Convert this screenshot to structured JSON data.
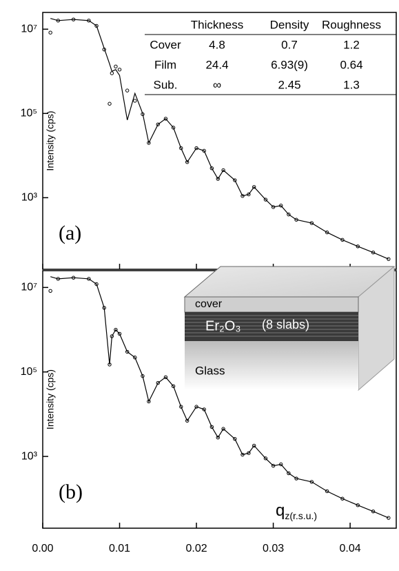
{
  "chart_data": [
    {
      "type": "line",
      "panel_label": "(a)",
      "y_label": "Intensity (cps)",
      "log_y": true,
      "xtick_labels": false,
      "x": [
        0.001,
        0.002,
        0.004,
        0.006,
        0.007,
        0.008,
        0.0087,
        0.009,
        0.0095,
        0.01,
        0.011,
        0.012,
        0.013,
        0.0138,
        0.015,
        0.016,
        0.017,
        0.018,
        0.0188,
        0.02,
        0.021,
        0.022,
        0.0228,
        0.0235,
        0.025,
        0.026,
        0.0268,
        0.0275,
        0.029,
        0.03,
        0.031,
        0.032,
        0.033,
        0.035,
        0.037,
        0.039,
        0.041,
        0.043,
        0.045
      ],
      "series": [
        {
          "style": "markers",
          "color": "#000000",
          "values": [
            8300000,
            16000000,
            17000000,
            16000000,
            12000000,
            3300000,
            170000,
            900000,
            1300000,
            1100000,
            350000,
            200000,
            96000,
            20000,
            55000,
            75000,
            46000,
            15000,
            7000,
            15000,
            13000,
            5000,
            2800,
            4500,
            2600,
            1100,
            1200,
            1800,
            900,
            600,
            650,
            400,
            300,
            250,
            150,
            100,
            70,
            50,
            35
          ]
        },
        {
          "style": "line",
          "color": "#000000",
          "values": [
            18000000,
            16000000,
            17000000,
            16000000,
            12000000,
            3500000,
            1500000,
            1000000,
            1100000,
            800000,
            70000,
            300000,
            100000,
            20000,
            55000,
            75000,
            46000,
            15000,
            7000,
            15000,
            13000,
            5000,
            2800,
            4500,
            2600,
            1100,
            1200,
            1800,
            900,
            600,
            650,
            400,
            300,
            250,
            150,
            100,
            70,
            50,
            35
          ]
        }
      ],
      "xlim": [
        0,
        0.046
      ],
      "xticks": [
        0,
        0.01,
        0.02,
        0.03,
        0.04
      ],
      "ylim": [
        20,
        25000000
      ],
      "yticks": [
        {
          "value": 1000,
          "label": "10³"
        },
        {
          "value": 100000,
          "label": "10⁵"
        },
        {
          "value": 10000000,
          "label": "10⁷"
        }
      ],
      "table": {
        "columns": [
          "Thickness",
          "Density",
          "Roughness"
        ],
        "rows": [
          [
            "Cover",
            "4.8",
            "0.7",
            "1.2"
          ],
          [
            "Film",
            "24.4",
            "6.93(9)",
            "0.64"
          ],
          [
            "Sub.",
            "∞",
            "2.45",
            "1.3"
          ]
        ]
      }
    },
    {
      "type": "line",
      "panel_label": "(b)",
      "y_label": "Intensity (cps)",
      "log_y": true,
      "xtick_labels": true,
      "x_label": {
        "main": "q",
        "sub": "z(r.s.u.)"
      },
      "x": [
        0.001,
        0.002,
        0.004,
        0.006,
        0.007,
        0.008,
        0.0087,
        0.009,
        0.0095,
        0.01,
        0.011,
        0.012,
        0.013,
        0.0138,
        0.015,
        0.016,
        0.017,
        0.018,
        0.0188,
        0.02,
        0.021,
        0.022,
        0.0228,
        0.0235,
        0.025,
        0.026,
        0.0268,
        0.0275,
        0.029,
        0.03,
        0.031,
        0.032,
        0.033,
        0.035,
        0.037,
        0.039,
        0.041,
        0.043,
        0.045
      ],
      "series": [
        {
          "style": "markers",
          "color": "#000000",
          "values": [
            8300000,
            16000000,
            17000000,
            16000000,
            12000000,
            3300000,
            150000,
            700000,
            1000000,
            800000,
            300000,
            220000,
            80000,
            20000,
            55000,
            75000,
            46000,
            15000,
            7000,
            15000,
            13000,
            5000,
            2800,
            4500,
            2600,
            1100,
            1200,
            1800,
            900,
            600,
            650,
            400,
            300,
            250,
            150,
            100,
            70,
            50,
            35
          ]
        },
        {
          "style": "line",
          "color": "#000000",
          "values": [
            18000000,
            16000000,
            17000000,
            16000000,
            12000000,
            3300000,
            150000,
            700000,
            1000000,
            800000,
            300000,
            220000,
            80000,
            20000,
            55000,
            75000,
            46000,
            15000,
            7000,
            15000,
            13000,
            5000,
            2800,
            4500,
            2600,
            1100,
            1200,
            1800,
            900,
            600,
            650,
            400,
            300,
            250,
            150,
            100,
            70,
            50,
            35
          ]
        }
      ],
      "xlim": [
        0,
        0.046
      ],
      "xticks": [
        {
          "value": 0,
          "label": "0.00"
        },
        {
          "value": 0.01,
          "label": "0.01"
        },
        {
          "value": 0.02,
          "label": "0.02"
        },
        {
          "value": 0.03,
          "label": "0.03"
        },
        {
          "value": 0.04,
          "label": "0.04"
        }
      ],
      "ylim": [
        20,
        25000000
      ],
      "yticks": [
        {
          "value": 1000,
          "label": "10³"
        },
        {
          "value": 100000,
          "label": "10⁵"
        },
        {
          "value": 10000000,
          "label": "10⁷"
        }
      ],
      "inset": {
        "cover": "cover",
        "film": "Er₂O₃",
        "slabs": "(8 slabs)",
        "substrate": "Glass"
      }
    }
  ]
}
